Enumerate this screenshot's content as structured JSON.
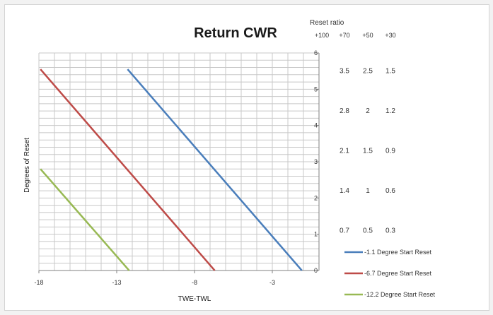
{
  "chart_data": {
    "type": "line",
    "title": "Return CWR",
    "xlabel": "TWE-TWL",
    "ylabel": "Degrees of Reset",
    "xlim": [
      -18,
      0
    ],
    "ylim": [
      0,
      6
    ],
    "x_ticks": [
      -18,
      -13,
      -8,
      -3
    ],
    "y_ticks": [
      0,
      1,
      2,
      3,
      4,
      5,
      6
    ],
    "grid": true,
    "legend_position": "bottom-right",
    "series": [
      {
        "name": "-1.1 Degree Start Reset",
        "color": "#4a7ebb",
        "points": [
          [
            -12.3,
            5.55
          ],
          [
            -1.1,
            0
          ]
        ]
      },
      {
        "name": "-6.7 Degree Start Reset",
        "color": "#be4b48",
        "points": [
          [
            -17.9,
            5.55
          ],
          [
            -6.7,
            0
          ]
        ]
      },
      {
        "name": "-12.2 Degree Start Reset",
        "color": "#98b954",
        "points": [
          [
            -17.9,
            2.8
          ],
          [
            -12.2,
            0
          ]
        ]
      }
    ],
    "reset_ratio_table": {
      "heading": "Reset ratio",
      "columns": [
        "+100",
        "+70",
        "+50",
        "+30"
      ],
      "rows": [
        {
          "y": 5.5,
          "values": [
            "3.5",
            "2.5",
            "1.5"
          ]
        },
        {
          "y": 4.4,
          "values": [
            "2.8",
            "2",
            "1.2"
          ]
        },
        {
          "y": 3.3,
          "values": [
            "2.1",
            "1.5",
            "0.9"
          ]
        },
        {
          "y": 2.2,
          "values": [
            "1.4",
            "1",
            "0.6"
          ]
        },
        {
          "y": 1.1,
          "values": [
            "0.7",
            "0.5",
            "0.3"
          ]
        }
      ]
    }
  }
}
